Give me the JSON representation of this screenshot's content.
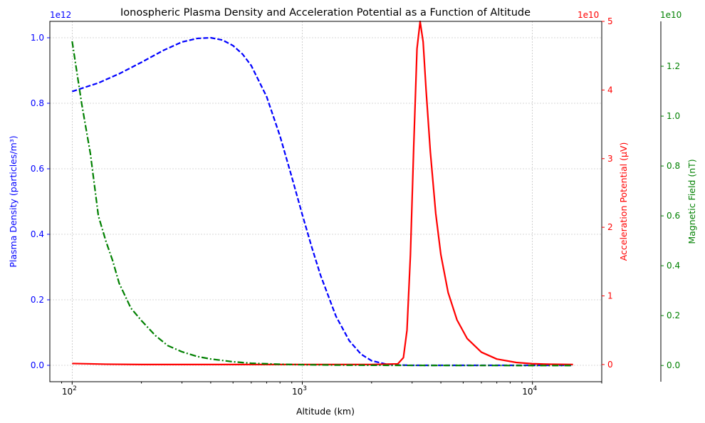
{
  "chart_data": {
    "type": "line",
    "title": "Ionospheric Plasma Density and Acceleration Potential as a Function of Altitude",
    "xlabel": "Altitude (km)",
    "xscale": "log",
    "xlim": [
      80,
      20000
    ],
    "x_ticks": [
      {
        "value": 100,
        "base": "10",
        "exp": "2"
      },
      {
        "value": 1000,
        "base": "10",
        "exp": "3"
      },
      {
        "value": 10000,
        "base": "10",
        "exp": "4"
      }
    ],
    "grid": true,
    "axes": {
      "left": {
        "label": "Plasma Density (particles/m³)",
        "multiplier": "1e12",
        "color": "#0000ff",
        "ylim": [
          -0.05,
          1.05
        ],
        "ticks": [
          "0.0",
          "0.2",
          "0.4",
          "0.6",
          "0.8",
          "1.0"
        ],
        "tick_values": [
          0,
          0.2,
          0.4,
          0.6,
          0.8,
          1.0
        ]
      },
      "right1": {
        "label": "Acceleration Potential (µV)",
        "multiplier": "1e10",
        "color": "#ff0000",
        "ylim": [
          -0.25,
          5.0
        ],
        "ticks": [
          "0",
          "1",
          "2",
          "3",
          "4",
          "5"
        ],
        "tick_values": [
          0,
          1,
          2,
          3,
          4,
          5
        ]
      },
      "right2": {
        "label": "Magnetic Field (nT)",
        "multiplier": "1e10",
        "color": "#008000",
        "ylim": [
          -0.065,
          1.38
        ],
        "ticks": [
          "0.0",
          "0.2",
          "0.4",
          "0.6",
          "0.8",
          "1.0",
          "1.2"
        ],
        "tick_values": [
          0,
          0.2,
          0.4,
          0.6,
          0.8,
          1.0,
          1.2
        ]
      }
    },
    "series": [
      {
        "axis": "left",
        "color": "#0000ff",
        "style": "dashed",
        "x": [
          100,
          130,
          160,
          200,
          250,
          300,
          350,
          400,
          450,
          500,
          550,
          600,
          700,
          800,
          900,
          1000,
          1100,
          1200,
          1400,
          1600,
          1800,
          2000,
          2300,
          2600,
          3000,
          4000,
          6000,
          10000,
          15000
        ],
        "y": [
          0.836,
          0.862,
          0.89,
          0.925,
          0.962,
          0.987,
          0.998,
          1.0,
          0.993,
          0.976,
          0.95,
          0.915,
          0.82,
          0.7,
          0.575,
          0.46,
          0.36,
          0.275,
          0.15,
          0.075,
          0.034,
          0.014,
          0.004,
          0.001,
          0.0,
          0.0,
          0.0,
          0.0,
          0.0
        ]
      },
      {
        "axis": "right1",
        "color": "#ff0000",
        "style": "solid",
        "x": [
          100,
          120,
          140,
          200,
          500,
          1000,
          2000,
          2600,
          2750,
          2850,
          2950,
          3050,
          3150,
          3250,
          3350,
          3450,
          3600,
          3800,
          4000,
          4300,
          4700,
          5200,
          6000,
          7000,
          8500,
          10000,
          12000,
          15000
        ],
        "y": [
          0.015,
          0.01,
          0.005,
          0.0,
          0.0,
          0.0,
          0.0,
          0.01,
          0.1,
          0.5,
          1.6,
          3.2,
          4.6,
          5.0,
          4.7,
          4.0,
          3.1,
          2.2,
          1.6,
          1.05,
          0.65,
          0.38,
          0.18,
          0.08,
          0.03,
          0.012,
          0.004,
          0.001
        ]
      },
      {
        "axis": "right2",
        "color": "#008000",
        "style": "dashdot",
        "x": [
          100,
          110,
          120,
          130,
          140,
          150,
          160,
          180,
          200,
          230,
          260,
          300,
          350,
          400,
          500,
          600,
          800,
          1000,
          1500,
          2000,
          3000,
          5000,
          10000,
          15000
        ],
        "y": [
          1.3,
          1.05,
          0.85,
          0.6,
          0.5,
          0.42,
          0.33,
          0.23,
          0.18,
          0.12,
          0.08,
          0.055,
          0.036,
          0.026,
          0.015,
          0.009,
          0.005,
          0.003,
          0.0015,
          0.001,
          0.0005,
          0.0002,
          0.0,
          0.0
        ]
      }
    ]
  }
}
